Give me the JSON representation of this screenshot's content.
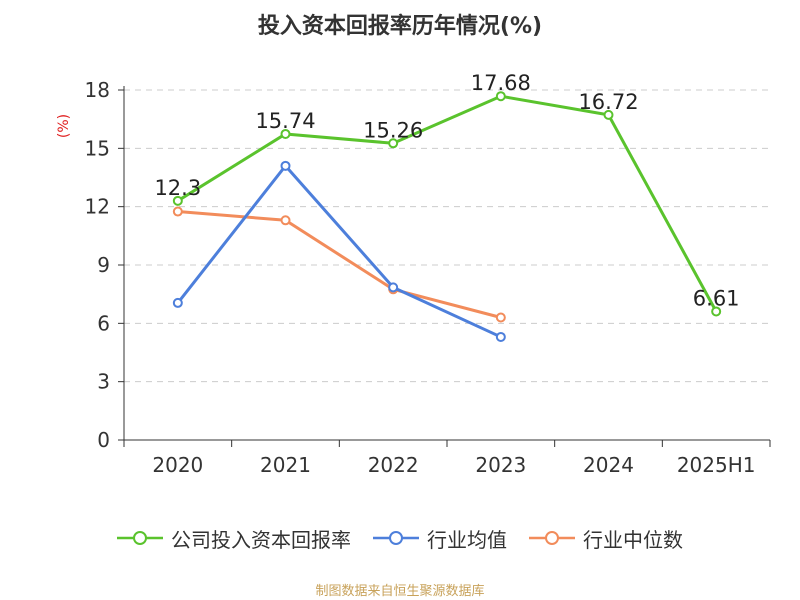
{
  "title": "投入资本回报率历年情况(%)",
  "source": "制图数据来自恒生聚源数据库",
  "chart_data": {
    "type": "line",
    "categories": [
      "2020",
      "2021",
      "2022",
      "2023",
      "2024",
      "2025H1"
    ],
    "y_unit_label": "(%)",
    "ylim": [
      0,
      18
    ],
    "yticks": [
      0,
      3,
      6,
      9,
      12,
      15,
      18
    ],
    "grid": true,
    "legend_position": "bottom",
    "series": [
      {
        "name": "公司投入资本回报率",
        "color": "#5ac32d",
        "values": [
          12.3,
          15.74,
          15.26,
          17.68,
          16.72,
          6.61
        ],
        "labels": [
          "12.3",
          "15.74",
          "15.26",
          "17.68",
          "16.72",
          "6.61"
        ]
      },
      {
        "name": "行业均值",
        "color": "#4d7fdb",
        "values": [
          7.05,
          14.1,
          7.85,
          5.3,
          null,
          null
        ]
      },
      {
        "name": "行业中位数",
        "color": "#f28c5b",
        "values": [
          11.75,
          11.3,
          7.75,
          6.3,
          null,
          null
        ]
      }
    ]
  }
}
